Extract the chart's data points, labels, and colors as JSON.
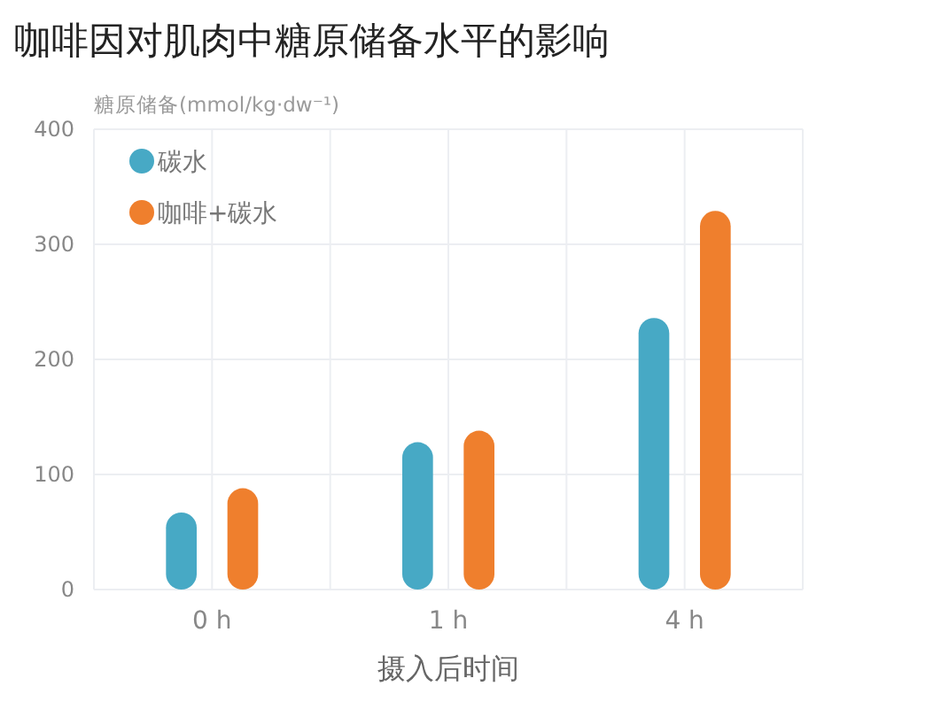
{
  "chart_data": {
    "type": "bar",
    "title": "咖啡因对肌肉中糖原储备水平的影响",
    "ylabel": "糖原储备(mmol/kg·dw⁻¹)",
    "xlabel": "摄入后时间",
    "categories": [
      "0 h",
      "1 h",
      "4 h"
    ],
    "series": [
      {
        "name": "碳水",
        "color": "#47a9c5",
        "values": [
          67,
          128,
          236
        ]
      },
      {
        "name": "咖啡+碳水",
        "color": "#ef7f2d",
        "values": [
          88,
          138,
          329
        ]
      }
    ],
    "ylim": [
      0,
      400
    ],
    "yticks": [
      0,
      100,
      200,
      300,
      400
    ],
    "grid": true,
    "legend": "top left"
  }
}
